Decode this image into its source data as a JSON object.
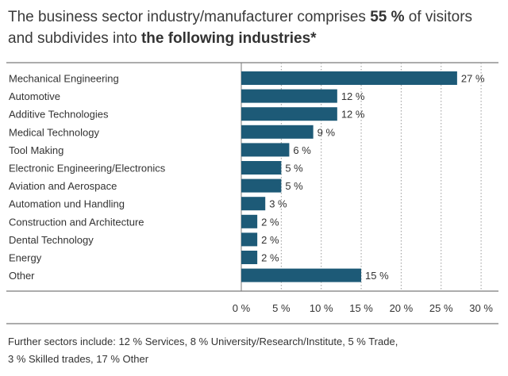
{
  "title": {
    "part1": "The business sector industry/manufacturer comprises ",
    "bold1": "55 %",
    "part2": " of visitors and subdivides into ",
    "bold2": "the following industries*"
  },
  "chart_data": {
    "type": "bar",
    "orientation": "horizontal",
    "categories": [
      "Mechanical Engineering",
      "Automotive",
      "Additive Technologies",
      "Medical Technology",
      "Tool Making",
      "Electronic Engineering/Electronics",
      "Aviation and Aerospace",
      "Automation und Handling",
      "Construction and Architecture",
      "Dental Technology",
      "Energy",
      "Other"
    ],
    "values": [
      27,
      12,
      12,
      9,
      6,
      5,
      5,
      3,
      2,
      2,
      2,
      15
    ],
    "value_labels": [
      "27 %",
      "12 %",
      "12 %",
      "9 %",
      "6 %",
      "5 %",
      "5 %",
      "3 %",
      "2 %",
      "2 %",
      "2 %",
      "15 %"
    ],
    "xlim": [
      0,
      30
    ],
    "ticks": [
      0,
      5,
      10,
      15,
      20,
      25,
      30
    ],
    "tick_labels": [
      "0 %",
      "5 %",
      "10 %",
      "15 %",
      "20 %",
      "25 %",
      "30 %"
    ],
    "grid": "vertical dotted",
    "bar_color": "#1d5a77"
  },
  "footer": {
    "line1": "Further sectors include: 12 % Services, 8 % University/Research/Institute, 5 % Trade,",
    "line2": "3 % Skilled trades, 17 % Other"
  }
}
